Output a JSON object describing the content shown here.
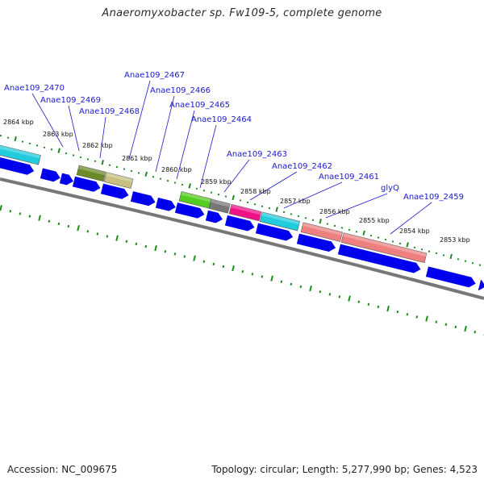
{
  "title": "Anaeromyxobacter sp. Fw109-5, complete genome",
  "footer": {
    "accession": "Accession: NC_009675",
    "summary": "Topology: circular; Length: 5,277,990 bp; Genes: 4,523"
  },
  "ticks": [
    "2864 kbp",
    "2863 kbp",
    "2862 kbp",
    "2861 kbp",
    "2860 kbp",
    "2859 kbp",
    "2858 kbp",
    "2857 kbp",
    "2856 kbp",
    "2855 kbp",
    "2854 kbp",
    "2853 kbp"
  ],
  "gene_labels": [
    "Anae109_2470",
    "Anae109_2469",
    "Anae109_2468",
    "Anae109_2467",
    "Anae109_2466",
    "Anae109_2465",
    "Anae109_2464",
    "Anae109_2463",
    "Anae109_2462",
    "Anae109_2461",
    "glyQ",
    "Anae109_2459"
  ],
  "colors": {
    "cds": "#0000ee",
    "cyan": "#22ccdd",
    "olive": "#6b8a28",
    "khaki": "#c8c080",
    "green": "#55cc22",
    "gray": "#777777",
    "magenta": "#ee1188",
    "salmon": "#ee8080",
    "tick": "#228822",
    "backbone": "#888888"
  }
}
